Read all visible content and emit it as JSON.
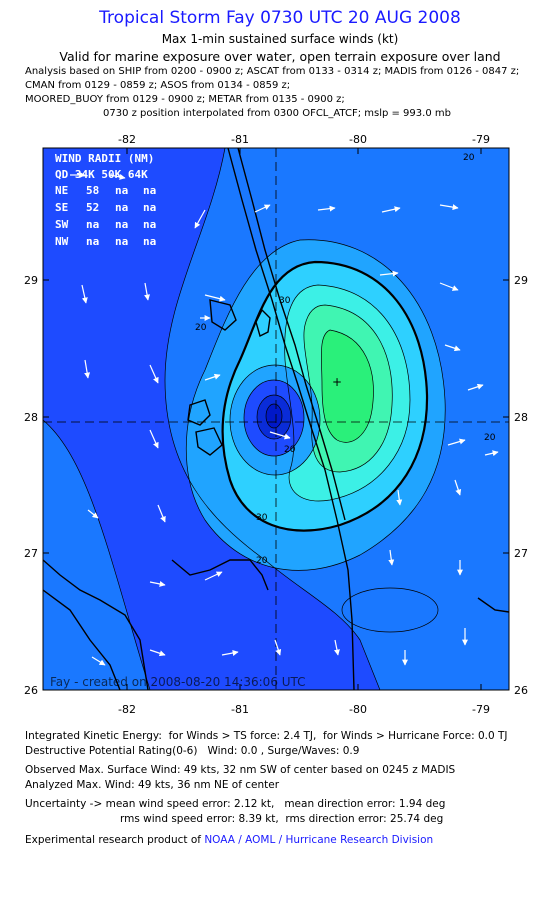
{
  "header": {
    "title": "Tropical Storm Fay 0730 UTC 20 AUG 2008",
    "subtitle": "Max 1-min sustained surface winds (kt)",
    "valid": "Valid for marine exposure over water, open terrain exposure over land",
    "analysis_lines": [
      "Analysis based on  SHIP from 0200 - 0900 z;  ASCAT from 0133 - 0314 z;  MADIS from 0126 - 0847 z;",
      "CMAN from 0129 - 0859 z;  ASOS from 0134 - 0859 z;",
      "MOORED_BUOY from 0129 - 0900 z;  METAR from 0135 - 0900 z;",
      "0730 z position interpolated from 0300 OFCL_ATCF; mslp = 993.0 mb"
    ]
  },
  "map": {
    "lon_ticks": [
      "-82",
      "-81",
      "-80",
      "-79"
    ],
    "lat_ticks": [
      "29",
      "28",
      "27",
      "26"
    ],
    "contour_labels": [
      "30",
      "20",
      "20",
      "20",
      "30",
      "20",
      "20"
    ],
    "credit": "Fay - created on 2008-08-20 14:36:06 UTC",
    "center_marker": "+",
    "colors": {
      "c_lt20": "#1e4bff",
      "c_20_25": "#1a78ff",
      "c_25_30": "#20a4ff",
      "c_30_35": "#2ed0ff",
      "c_35_40": "#3cf0e6",
      "c_40_45": "#40f5b2",
      "c_45_50": "#2af07a",
      "low_core": "#0a2cd8",
      "low_core2": "#0018c8"
    }
  },
  "wind_radii": {
    "title": "WIND RADII (NM)",
    "header": "QD  34K  50K  64K",
    "rows": [
      {
        "qd": "NE",
        "k34": "58",
        "k50": "na",
        "k64": "na"
      },
      {
        "qd": "SE",
        "k34": "52",
        "k50": "na",
        "k64": "na"
      },
      {
        "qd": "SW",
        "k34": "na",
        "k50": "na",
        "k64": "na"
      },
      {
        "qd": "NW",
        "k34": "na",
        "k50": "na",
        "k64": "na"
      }
    ]
  },
  "footer": {
    "ike_line1": "Integrated Kinetic Energy:  for Winds > TS force: 2.4 TJ,  for Winds > Hurricane Force: 0.0 TJ",
    "ike_line2": "Destructive Potential Rating(0-6)   Wind: 0.0 , Surge/Waves: 0.9",
    "obs_line1": "Observed Max. Surface Wind: 49 kts, 32 nm SW of center based on 0245 z MADIS",
    "obs_line2": "Analyzed Max. Wind: 49 kts, 36 nm NE of center",
    "unc_line1": "Uncertainty -> mean wind speed error: 2.12 kt,   mean direction error: 1.94 deg",
    "unc_line2": "rms wind speed error: 8.39 kt,  rms direction error: 25.74 deg",
    "product_prefix": "Experimental research product of",
    "product_link": "NOAA / AOML / Hurricane Research Division"
  }
}
